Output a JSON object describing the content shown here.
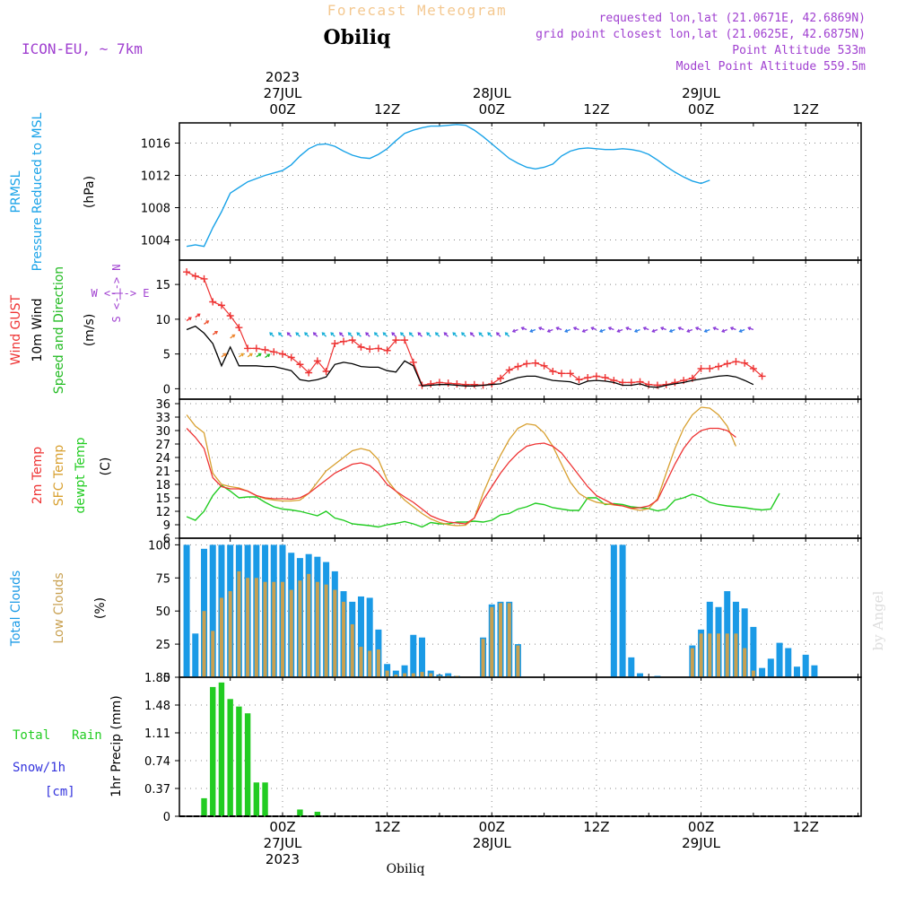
{
  "header": {
    "title": "Forecast Meteogram",
    "location": "Obiliq",
    "model": "ICON-EU, ~ 7km",
    "requested": "requested lon,lat (21.0671E, 42.6869N)",
    "gridpoint": "grid point closest lon,lat (21.0625E, 42.6875N)",
    "point_alt": "Point Altitude 533m",
    "model_alt": "Model Point Altitude 559.5m"
  },
  "footer": {
    "location": "Obiliq",
    "credit": "by Angel"
  },
  "colors": {
    "prmsl": "#1aa3e8",
    "gust": "#ee3333",
    "wind": "#000000",
    "dir": "#22bb22",
    "temp2m": "#ee3333",
    "sfc": "#d8a030",
    "dew": "#22cc22",
    "total_clouds": "#1a9ae6",
    "low_clouds": "#c8a050",
    "rain": "#22cc22",
    "snow": "#3333dd",
    "header_title": "#f4c890",
    "meta": "#a040d0"
  },
  "time_axis": {
    "top_labels": [
      {
        "h": 0,
        "lines": [
          "2023",
          "27JUL",
          "00Z"
        ]
      },
      {
        "h": 12,
        "lines": [
          "12Z"
        ]
      },
      {
        "h": 24,
        "lines": [
          "28JUL",
          "00Z"
        ]
      },
      {
        "h": 36,
        "lines": [
          "12Z"
        ]
      },
      {
        "h": 48,
        "lines": [
          "29JUL",
          "00Z"
        ]
      },
      {
        "h": 60,
        "lines": [
          "12Z"
        ]
      }
    ],
    "bottom_labels": [
      {
        "h": 0,
        "lines": [
          "00Z",
          "27JUL",
          "2023"
        ]
      },
      {
        "h": 12,
        "lines": [
          "12Z"
        ]
      },
      {
        "h": 24,
        "lines": [
          "00Z",
          "28JUL"
        ]
      },
      {
        "h": 36,
        "lines": [
          "12Z"
        ]
      },
      {
        "h": 48,
        "lines": [
          "00Z",
          "29JUL"
        ]
      },
      {
        "h": 60,
        "lines": [
          "12Z"
        ]
      }
    ]
  },
  "panels": {
    "pressure": {
      "labels": [
        {
          "text": "PRMSL",
          "color": "prmsl"
        },
        {
          "text": "Pressure Reduced to MSL",
          "color": "prmsl"
        },
        {
          "text": "(hPa)",
          "color": "wind"
        }
      ],
      "ticks": [
        "1004",
        "1008",
        "1012",
        "1016"
      ]
    },
    "wind": {
      "labels": [
        {
          "text": "Wind GUST",
          "color": "gust"
        },
        {
          "text": "10m Wind",
          "color": "wind"
        },
        {
          "text": "Speed and Direction",
          "color": "dir"
        },
        {
          "text": "(m/s)",
          "color": "wind"
        }
      ],
      "ticks": [
        "0",
        "5",
        "10",
        "15"
      ],
      "compass": {
        "n": "N",
        "s": "S",
        "w": "W",
        "e": "E"
      }
    },
    "temp": {
      "labels": [
        {
          "text": "2m Temp",
          "color": "temp2m"
        },
        {
          "text": "SFC Temp",
          "color": "sfc"
        },
        {
          "text": "dewpt Temp",
          "color": "dew"
        },
        {
          "text": "(C)",
          "color": "wind"
        }
      ],
      "ticks": [
        "6",
        "9",
        "12",
        "15",
        "18",
        "21",
        "24",
        "27",
        "30",
        "33",
        "36"
      ]
    },
    "clouds": {
      "labels": [
        {
          "text": "Total Clouds",
          "color": "total_clouds"
        },
        {
          "text": "Low Clouds",
          "color": "low_clouds"
        },
        {
          "text": "(%)",
          "color": "wind"
        }
      ],
      "ticks": [
        "0",
        "25",
        "50",
        "75",
        "100"
      ]
    },
    "precip": {
      "labels": [
        {
          "text": "Total",
          "color": "rain"
        },
        {
          "text": "Rain",
          "color": "rain"
        },
        {
          "text": "Snow/1h",
          "color": "snow"
        },
        {
          "text": "[cm]",
          "color": "snow"
        },
        {
          "text": "1hr Precip (mm)",
          "color": "wind"
        }
      ],
      "ticks": [
        "0",
        "0.37",
        "0.74",
        "1.11",
        "1.48",
        "1.85"
      ]
    }
  },
  "chart_data": [
    {
      "type": "line",
      "title": "Pressure Reduced to MSL",
      "ylabel": "(hPa)",
      "ylim": [
        1001.5,
        1018.5
      ],
      "x_start_hours": -11,
      "x_step_hours": 1,
      "series": [
        {
          "name": "PRMSL",
          "values": [
            1003.2,
            1003.4,
            1003.2,
            1005.5,
            1007.5,
            1009.8,
            1010.5,
            1011.2,
            1011.6,
            1012.0,
            1012.3,
            1012.6,
            1013.3,
            1014.4,
            1015.3,
            1015.8,
            1015.9,
            1015.6,
            1015.0,
            1014.5,
            1014.2,
            1014.1,
            1014.6,
            1015.3,
            1016.3,
            1017.2,
            1017.6,
            1017.9,
            1018.1,
            1018.1,
            1018.2,
            1018.3,
            1018.2,
            1017.6,
            1016.8,
            1015.9,
            1015.0,
            1014.1,
            1013.5,
            1013.0,
            1012.8,
            1013.0,
            1013.4,
            1014.4,
            1015.0,
            1015.3,
            1015.4,
            1015.3,
            1015.2,
            1015.2,
            1015.3,
            1015.2,
            1015.0,
            1014.6,
            1013.9,
            1013.1,
            1012.4,
            1011.8,
            1011.3,
            1011.0,
            1011.4
          ]
        }
      ]
    },
    {
      "type": "line",
      "title": "Wind GUST / 10m Wind Speed and Direction",
      "ylabel": "(m/s)",
      "ylim": [
        -1.5,
        18.5
      ],
      "x_start_hours": -11,
      "x_step_hours": 1,
      "series": [
        {
          "name": "Wind GUST",
          "values": [
            16.8,
            16.2,
            15.8,
            12.5,
            12.0,
            10.5,
            8.8,
            5.8,
            5.8,
            5.6,
            5.3,
            5.0,
            4.5,
            3.5,
            2.3,
            4.0,
            2.5,
            6.5,
            6.8,
            7.0,
            6.0,
            5.7,
            5.8,
            5.5,
            7.0,
            7.0,
            3.8,
            0.5,
            0.7,
            0.9,
            0.8,
            0.7,
            0.6,
            0.6,
            0.5,
            0.7,
            1.5,
            2.7,
            3.2,
            3.6,
            3.7,
            3.3,
            2.5,
            2.2,
            2.2,
            1.3,
            1.6,
            1.8,
            1.6,
            1.2,
            0.9,
            0.9,
            1.0,
            0.6,
            0.5,
            0.6,
            0.9,
            1.2,
            1.5,
            2.9,
            2.9,
            3.2,
            3.6,
            3.9,
            3.7,
            2.9,
            1.8
          ]
        },
        {
          "name": "10m Wind",
          "values": [
            8.5,
            9.0,
            8.0,
            6.5,
            3.3,
            6.0,
            3.3,
            3.3,
            3.3,
            3.2,
            3.2,
            2.9,
            2.6,
            1.3,
            1.1,
            1.3,
            1.7,
            3.5,
            3.8,
            3.6,
            3.2,
            3.1,
            3.1,
            2.6,
            2.4,
            4.0,
            3.3,
            0.4,
            0.5,
            0.6,
            0.6,
            0.5,
            0.4,
            0.4,
            0.5,
            0.6,
            0.7,
            1.2,
            1.6,
            1.8,
            1.8,
            1.5,
            1.2,
            1.1,
            1.0,
            0.6,
            1.1,
            1.2,
            1.1,
            0.9,
            0.5,
            0.5,
            0.7,
            0.3,
            0.2,
            0.5,
            0.7,
            0.9,
            1.2,
            1.4,
            1.6,
            1.8,
            1.9,
            1.7,
            1.2,
            0.6
          ]
        }
      ]
    },
    {
      "type": "line",
      "title": "2m Temp / SFC Temp / dewpt Temp",
      "ylabel": "(C)",
      "ylim": [
        6,
        37
      ],
      "x_start_hours": -11,
      "x_step_hours": 1,
      "series": [
        {
          "name": "2m Temp",
          "values": [
            30.5,
            28.5,
            26,
            19.5,
            17.5,
            17,
            17,
            16.5,
            15.5,
            15,
            14.8,
            14.8,
            14.7,
            15,
            16,
            17.5,
            19,
            20.5,
            21.5,
            22.5,
            22.8,
            22.2,
            20.5,
            18,
            16.5,
            15.2,
            14,
            12.5,
            11,
            10.2,
            9.6,
            9.4,
            9.2,
            10.5,
            14.5,
            17.5,
            20.5,
            23,
            25,
            26.5,
            27,
            27.2,
            26.5,
            25,
            22.5,
            20,
            17.5,
            15.5,
            14.5,
            13.5,
            13.2,
            12.7,
            12.8,
            13.2,
            14.5,
            18.5,
            22.5,
            26,
            28.5,
            30,
            30.5,
            30.5,
            30,
            28.5
          ]
        },
        {
          "name": "SFC Temp",
          "values": [
            33.5,
            31,
            29.5,
            20.5,
            18,
            17.5,
            17.2,
            16.5,
            15.5,
            14.8,
            14.5,
            14.3,
            14.3,
            14.5,
            16,
            18.5,
            21,
            22.5,
            24,
            25.5,
            26,
            25.5,
            23.5,
            19,
            16.5,
            14.5,
            13,
            11.5,
            10.3,
            9.5,
            9,
            8.8,
            8.9,
            10.5,
            16,
            20.5,
            24.5,
            28,
            30.5,
            31.5,
            31.2,
            29.5,
            26.5,
            22.5,
            18.5,
            16,
            14.8,
            14,
            13.7,
            13.4,
            13.2,
            12.6,
            12.2,
            12.6,
            14.8,
            20.5,
            26,
            30.5,
            33.5,
            35.2,
            35,
            33.5,
            31,
            26.5
          ]
        },
        {
          "name": "dewpt Temp",
          "values": [
            10.8,
            10,
            12,
            15.5,
            17.8,
            16.5,
            15,
            15.2,
            15.2,
            14,
            13,
            12.5,
            12.3,
            12,
            11.5,
            11,
            12,
            10.5,
            10,
            9.2,
            9,
            8.8,
            8.5,
            9,
            9.3,
            9.7,
            9.2,
            8.5,
            9.5,
            9.2,
            9.2,
            9.6,
            9.6,
            9.8,
            9.6,
            10,
            11.2,
            11.5,
            12.5,
            13,
            13.8,
            13.5,
            12.8,
            12.5,
            12.2,
            12.2,
            15,
            15,
            13.5,
            13.7,
            13.5,
            13,
            12.8,
            12.6,
            12.1,
            12.5,
            14.5,
            15,
            15.8,
            15.2,
            14,
            13.5,
            13.2,
            13,
            12.8,
            12.5,
            12.3,
            12.5,
            16
          ]
        }
      ]
    },
    {
      "type": "bar",
      "title": "Total Clouds / Low Clouds",
      "ylabel": "(%)",
      "ylim": [
        0,
        105
      ],
      "x_start_hours": -11,
      "x_step_hours": 1,
      "series": [
        {
          "name": "Total Clouds",
          "values": [
            100,
            33,
            97,
            100,
            100,
            100,
            100,
            100,
            100,
            100,
            100,
            100,
            94,
            90,
            93,
            91,
            87,
            80,
            65,
            57,
            61,
            60,
            36,
            10,
            5,
            9,
            32,
            30,
            5,
            2,
            3,
            1,
            0,
            0,
            30,
            55,
            57,
            57,
            25,
            0,
            0,
            0,
            0,
            0,
            0,
            0,
            0,
            0,
            0,
            100,
            100,
            15,
            3,
            0,
            1,
            0,
            0,
            0,
            24,
            36,
            57,
            53,
            65,
            57,
            52,
            38,
            7,
            14,
            26,
            22,
            8,
            17,
            9
          ]
        },
        {
          "name": "Low Clouds",
          "values": [
            0,
            0,
            50,
            35,
            60,
            65,
            80,
            75,
            75,
            72,
            72,
            72,
            66,
            73,
            78,
            72,
            70,
            66,
            57,
            40,
            23,
            20,
            21,
            5,
            2,
            3,
            3,
            4,
            3,
            1,
            1,
            1,
            0,
            0,
            29,
            53,
            56,
            56,
            24,
            0,
            0,
            0,
            0,
            0,
            0,
            0,
            0,
            0,
            0,
            0,
            0,
            0,
            0,
            0,
            0,
            0,
            0,
            0,
            22,
            33,
            33,
            33,
            33,
            33,
            22,
            5,
            0,
            0,
            0,
            0,
            0,
            0,
            0
          ]
        }
      ]
    },
    {
      "type": "bar",
      "title": "1hr Precip",
      "ylabel": "1hr Precip (mm)",
      "ylim": [
        0,
        1.85
      ],
      "x_start_hours": -11,
      "x_step_hours": 1,
      "series": [
        {
          "name": "Total Rain",
          "values": [
            0,
            0,
            0.24,
            1.72,
            1.78,
            1.56,
            1.46,
            1.37,
            0.45,
            0.45,
            0,
            0,
            0,
            0.09,
            0,
            0.06
          ]
        }
      ]
    }
  ]
}
